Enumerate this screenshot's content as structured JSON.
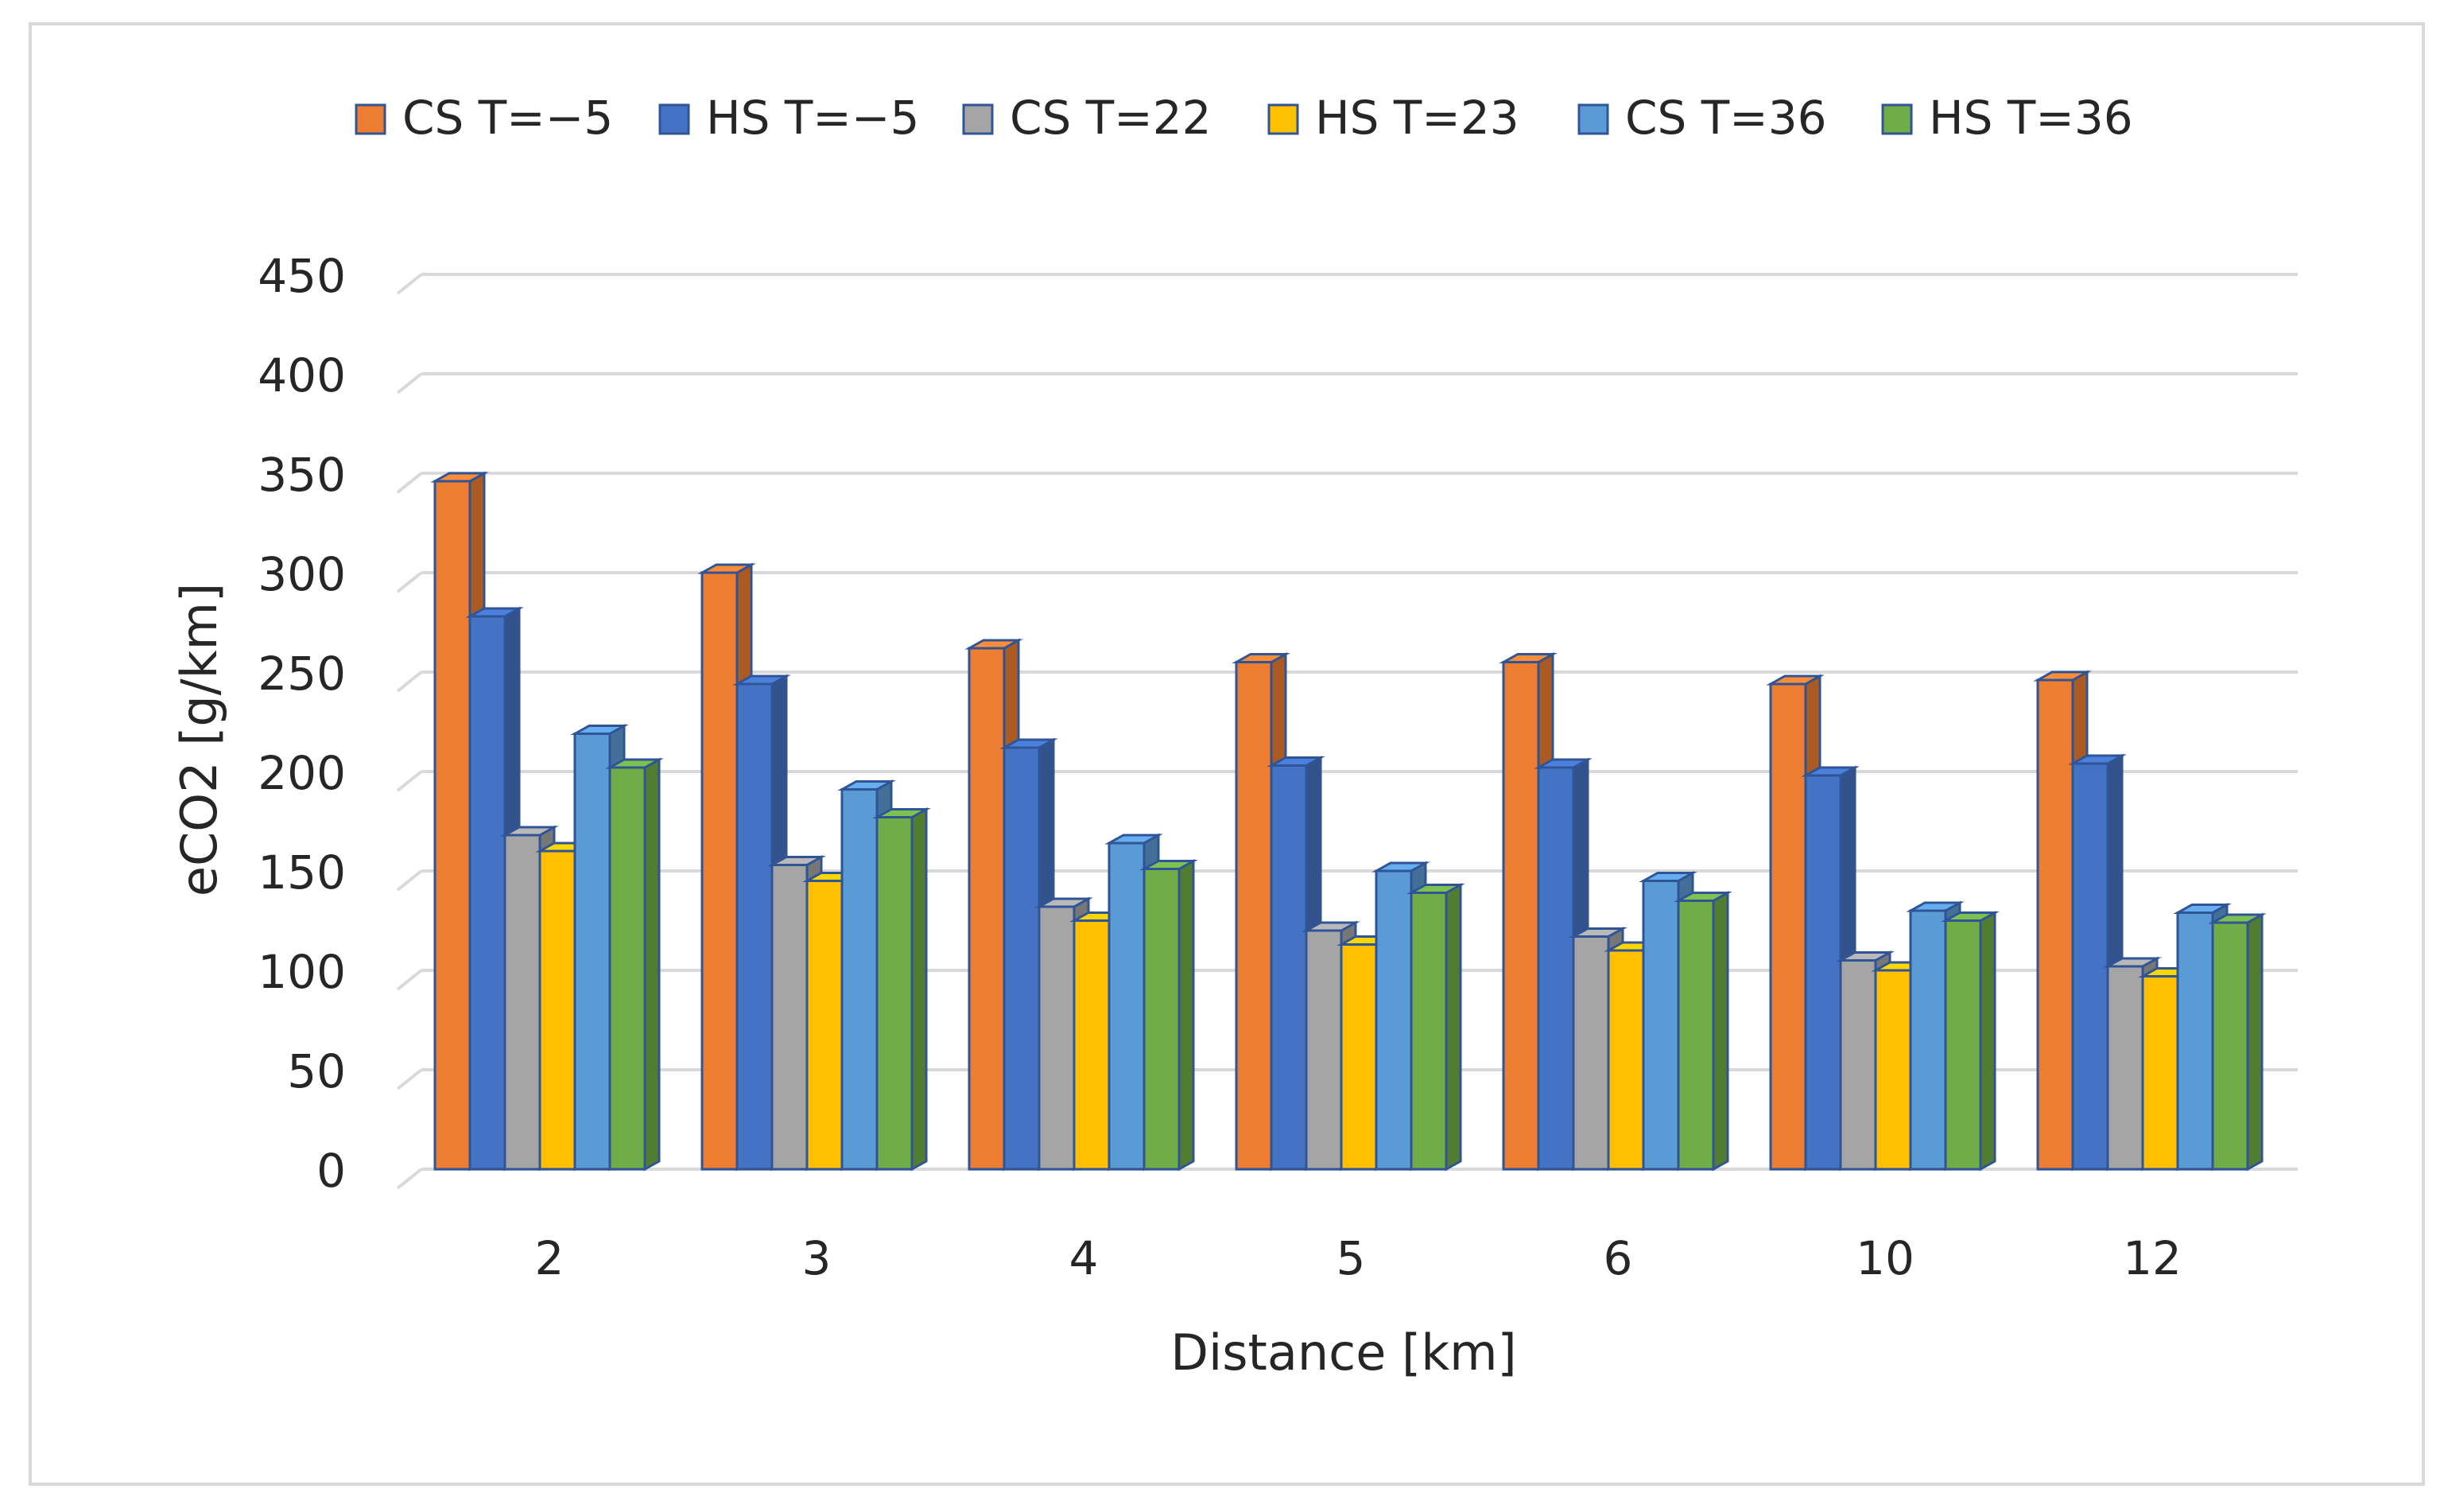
{
  "chart_data": {
    "type": "bar",
    "style": "3d-clustered-column",
    "title": "",
    "xlabel": "Distance [km]",
    "ylabel": "eCO2 [g/km]",
    "ylim": [
      0,
      450
    ],
    "yticks": [
      "0",
      "50",
      "100",
      "150",
      "200",
      "250",
      "300",
      "350",
      "400",
      "450"
    ],
    "grid": true,
    "legend_position": "top",
    "categories": [
      "2",
      "3",
      "4",
      "5",
      "6",
      "10",
      "12"
    ],
    "series": [
      {
        "name": "CS T=−5",
        "color": "#ED7D31",
        "values": [
          346,
          300,
          262,
          255,
          255,
          244,
          246
        ]
      },
      {
        "name": "HS T=−5",
        "color": "#4472C4",
        "values": [
          278,
          244,
          212,
          203,
          202,
          198,
          204
        ]
      },
      {
        "name": "CS T=22",
        "color": "#A5A5A5",
        "values": [
          168,
          153,
          132,
          120,
          117,
          105,
          102
        ]
      },
      {
        "name": "HS T=23",
        "color": "#FFC000",
        "values": [
          160,
          145,
          125,
          113,
          110,
          100,
          97
        ]
      },
      {
        "name": "CS T=36",
        "color": "#5B9BD5",
        "values": [
          219,
          191,
          164,
          150,
          145,
          130,
          129
        ]
      },
      {
        "name": "HS T=36",
        "color": "#70AD47",
        "values": [
          202,
          177,
          151,
          139,
          135,
          125,
          124
        ]
      }
    ]
  }
}
